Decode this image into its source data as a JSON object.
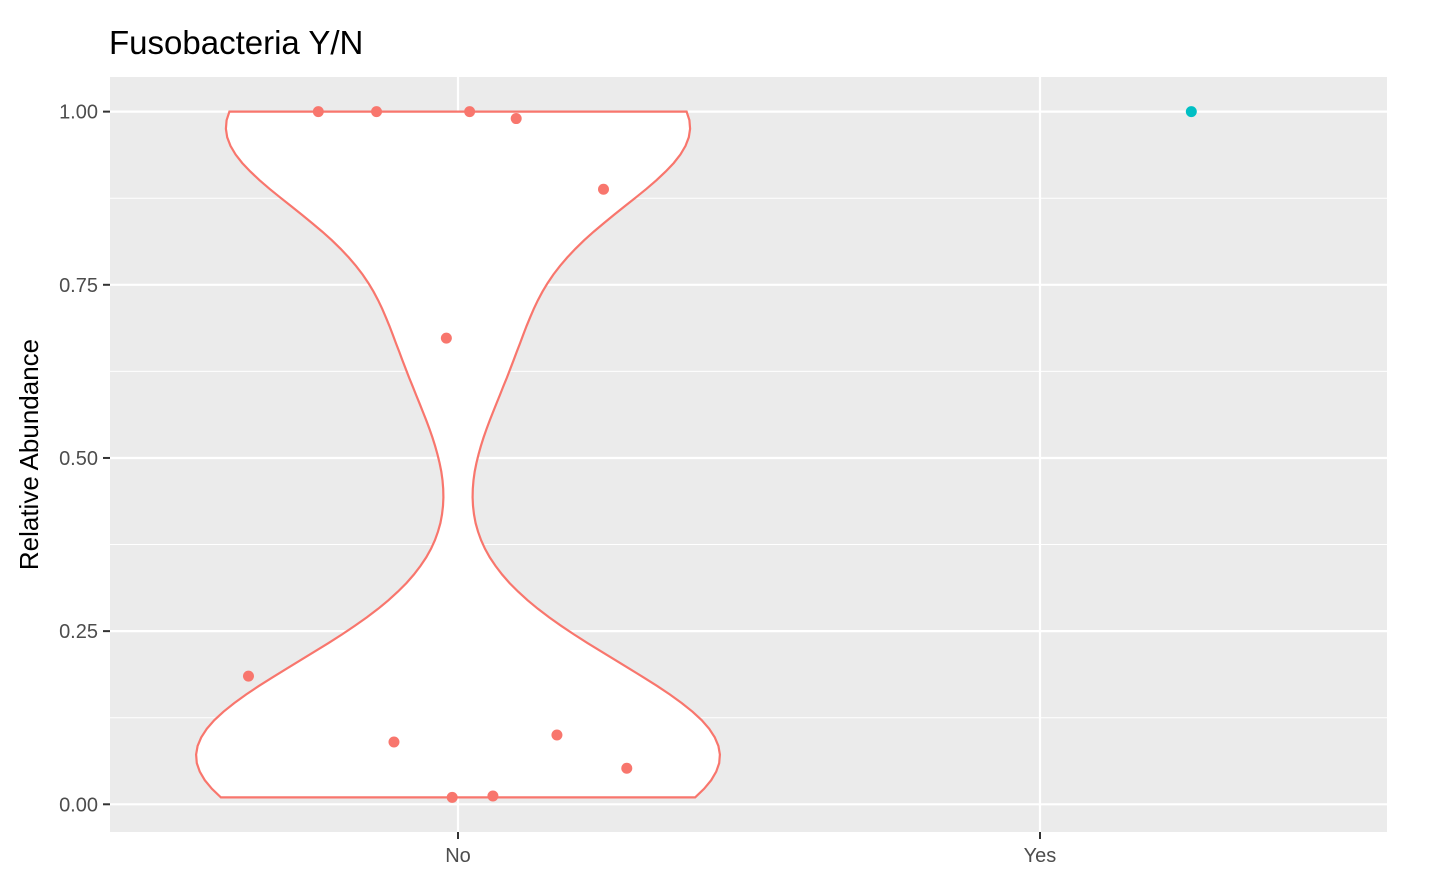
{
  "chart_data": {
    "type": "violin",
    "title": "Fusobacteria Y/N",
    "xlabel": "",
    "ylabel": "Relative Abundance",
    "categories": [
      "No",
      "Yes"
    ],
    "ylim": [
      -0.04,
      1.05
    ],
    "yticks": [
      {
        "value": 0.0,
        "label": "0.00"
      },
      {
        "value": 0.25,
        "label": "0.25"
      },
      {
        "value": 0.5,
        "label": "0.50"
      },
      {
        "value": 0.75,
        "label": "0.75"
      },
      {
        "value": 1.0,
        "label": "1.00"
      }
    ],
    "grid": true,
    "legend": "none",
    "series": [
      {
        "category": "No",
        "color": "#F8766D",
        "violin_range": [
          0.01,
          1.0
        ],
        "points": [
          {
            "jitter": -0.24,
            "y": 1.0
          },
          {
            "jitter": -0.14,
            "y": 1.0
          },
          {
            "jitter": 0.02,
            "y": 1.0
          },
          {
            "jitter": 0.1,
            "y": 0.99
          },
          {
            "jitter": 0.25,
            "y": 0.888
          },
          {
            "jitter": -0.02,
            "y": 0.673
          },
          {
            "jitter": -0.36,
            "y": 0.185
          },
          {
            "jitter": -0.11,
            "y": 0.09
          },
          {
            "jitter": 0.17,
            "y": 0.1
          },
          {
            "jitter": 0.29,
            "y": 0.052
          },
          {
            "jitter": -0.01,
            "y": 0.01
          },
          {
            "jitter": 0.06,
            "y": 0.012
          }
        ]
      },
      {
        "category": "Yes",
        "color": "#00BFC4",
        "points": [
          {
            "jitter": 0.26,
            "y": 1.0
          }
        ]
      }
    ]
  }
}
